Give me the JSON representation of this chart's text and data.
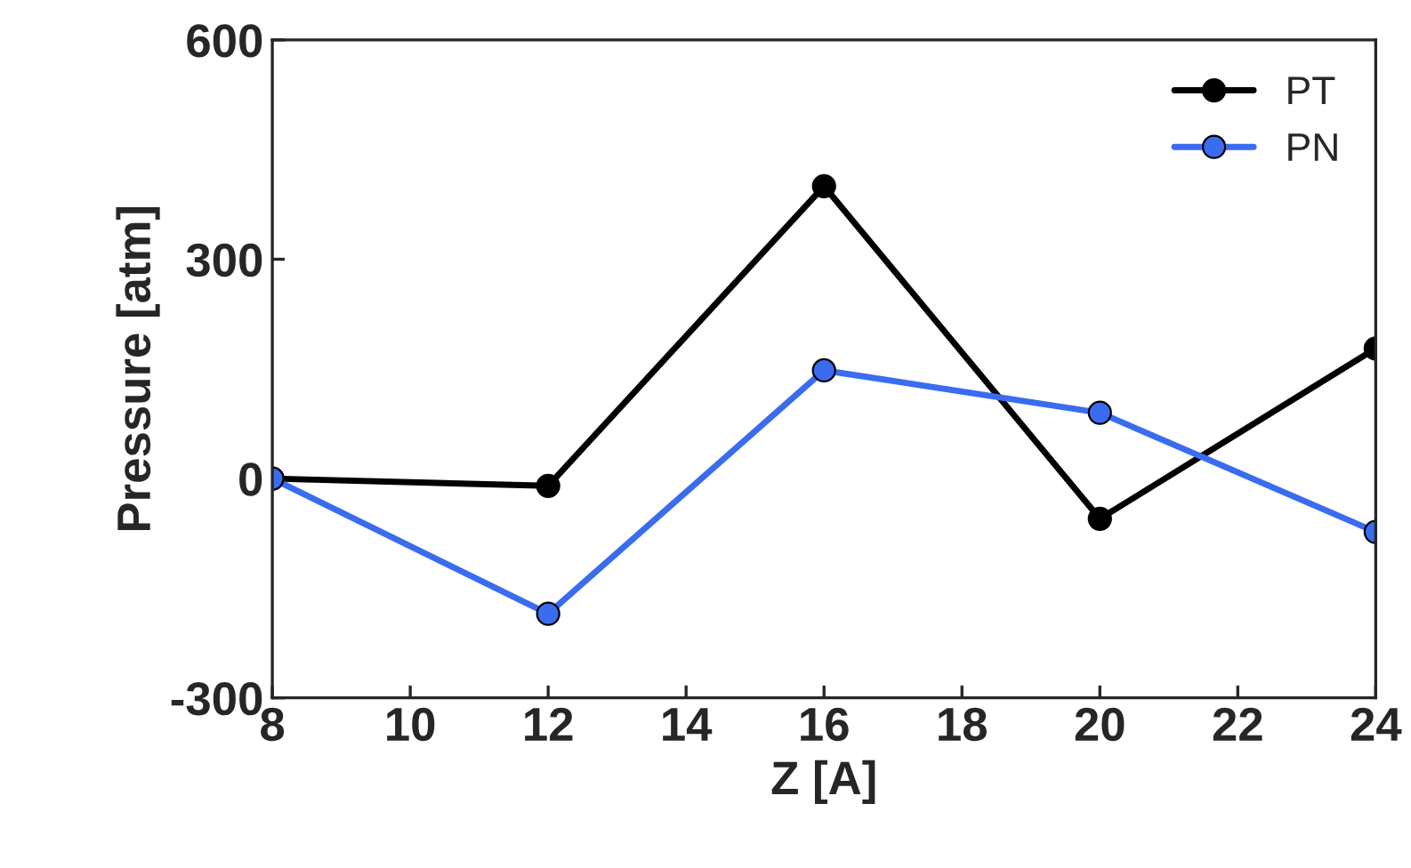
{
  "chart_data": {
    "type": "line",
    "xlabel": "Z [A]",
    "ylabel": "Pressure [atm]",
    "x": [
      8,
      12,
      16,
      20,
      24
    ],
    "series": [
      {
        "name": "PT",
        "color": "#000000",
        "values": [
          0,
          -10,
          400,
          -55,
          178
        ]
      },
      {
        "name": "PN",
        "color": "#3a6cf0",
        "values": [
          0,
          -185,
          148,
          90,
          -73
        ]
      }
    ],
    "xlim": [
      8,
      24
    ],
    "xticks": [
      8,
      10,
      12,
      14,
      16,
      18,
      20,
      22,
      24
    ],
    "ylim": [
      -300,
      600
    ],
    "yticks": [
      -300,
      0,
      300,
      600
    ],
    "legend": "top right",
    "marker": "circle",
    "line_style": "solid",
    "grid": false
  }
}
